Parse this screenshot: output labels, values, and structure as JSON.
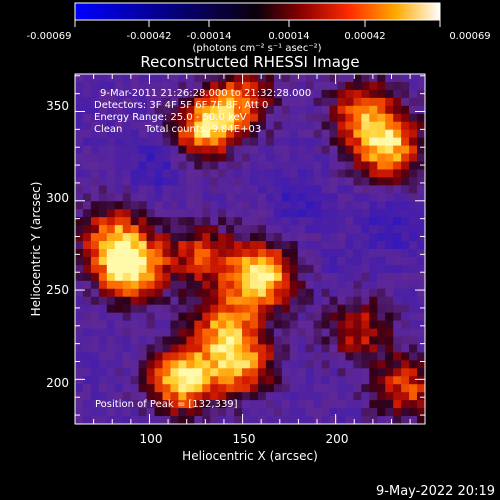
{
  "chart_data": {
    "type": "heatmap",
    "title": "Reconstructed RHESSI Image",
    "xlabel": "Heliocentric X (arcsec)",
    "ylabel": "Heliocentric Y (arcsec)",
    "xlim": [
      60,
      248
    ],
    "ylim": [
      175,
      371
    ],
    "x_ticks": [
      100,
      150,
      200
    ],
    "y_ticks": [
      200,
      250,
      300,
      350
    ],
    "colorbar": {
      "ticks": [
        "-0.00069",
        "-0.00042",
        "-0.00014",
        "0.00014",
        "0.00042",
        "0.00069"
      ],
      "range": [
        -0.00069,
        0.00069
      ],
      "units": "(photons cm⁻² s⁻¹ asec⁻²)"
    },
    "annotations": {
      "time_range": "9-Mar-2011 21:26:28.000 to 21:32:28.000",
      "detectors": "Detectors: 3F 4F 5F 6F 7F 8F, Att 0",
      "energy": "Energy Range: 25.0 - 50.0 keV",
      "method_label": "Clean",
      "total_counts": "Total counts: 9.84E+03",
      "peak": "Position of Peak = [132,339]"
    },
    "sources": [
      {
        "x": 90,
        "y": 262,
        "intensity": 0.95
      },
      {
        "x": 80,
        "y": 280,
        "intensity": 0.6
      },
      {
        "x": 132,
        "y": 339,
        "intensity": 1.0
      },
      {
        "x": 150,
        "y": 358,
        "intensity": 0.55
      },
      {
        "x": 160,
        "y": 258,
        "intensity": 0.95
      },
      {
        "x": 128,
        "y": 270,
        "intensity": 0.55
      },
      {
        "x": 140,
        "y": 230,
        "intensity": 0.65
      },
      {
        "x": 118,
        "y": 200,
        "intensity": 0.95
      },
      {
        "x": 150,
        "y": 208,
        "intensity": 0.7
      },
      {
        "x": 228,
        "y": 330,
        "intensity": 0.85
      },
      {
        "x": 214,
        "y": 350,
        "intensity": 0.6
      },
      {
        "x": 238,
        "y": 195,
        "intensity": 0.6
      },
      {
        "x": 212,
        "y": 228,
        "intensity": 0.5
      },
      {
        "x": 200,
        "y": 262,
        "intensity": 0.15
      }
    ]
  },
  "footer_date": "9-May-2022 20:19"
}
